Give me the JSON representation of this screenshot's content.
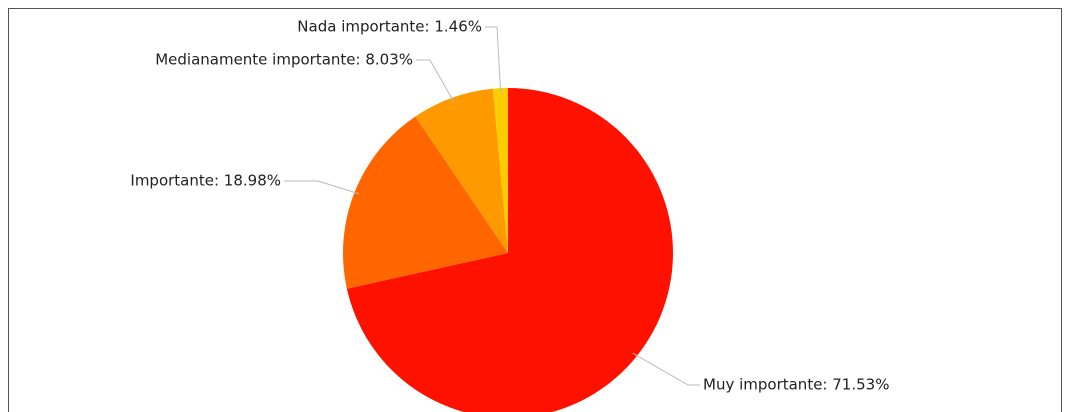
{
  "chart_data": {
    "type": "pie",
    "values": [
      71.53,
      18.98,
      8.03,
      1.46
    ],
    "value_labels": [
      "Muy importante: 71.53%",
      "Importante: 18.98%",
      "Medianamente importante: 8.03%",
      "Nada importante: 1.46%"
    ],
    "colors": [
      "#ff1100",
      "#ff6600",
      "#ff9900",
      "#ffcc00"
    ]
  }
}
